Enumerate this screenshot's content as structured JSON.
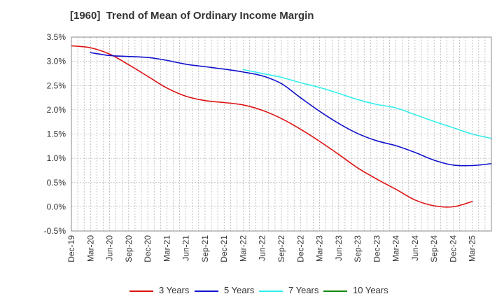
{
  "chart_data": {
    "type": "line",
    "title": "[1960]  Trend of Mean of Ordinary Income Margin",
    "xlabel": "",
    "ylabel": "",
    "x_tick_labels": [
      "Dec-19",
      "Mar-20",
      "Jun-20",
      "Sep-20",
      "Dec-20",
      "Mar-21",
      "Jun-21",
      "Sep-21",
      "Dec-21",
      "Mar-22",
      "Jun-22",
      "Sep-22",
      "Dec-22",
      "Mar-23",
      "Jun-23",
      "Sep-23",
      "Dec-23",
      "Mar-24",
      "Jun-24",
      "Sep-24",
      "Dec-24",
      "Mar-25"
    ],
    "y_tick_labels": [
      "3.5%",
      "3.0%",
      "2.5%",
      "2.0%",
      "1.5%",
      "1.0%",
      "0.5%",
      "0.0%",
      "-0.5%"
    ],
    "y_tick_values": [
      3.5,
      3.0,
      2.5,
      2.0,
      1.5,
      1.0,
      0.5,
      0.0,
      -0.5
    ],
    "ylim": [
      -0.5,
      3.5
    ],
    "x_range_months": [
      0,
      63
    ],
    "grid": true,
    "legend_position": "bottom",
    "series": [
      {
        "name": "3 Years",
        "color": "#dd1111",
        "points": [
          {
            "m": 0,
            "v": 3.32
          },
          {
            "m": 3,
            "v": 3.28
          },
          {
            "m": 6,
            "v": 3.15
          },
          {
            "m": 9,
            "v": 2.93
          },
          {
            "m": 12,
            "v": 2.69
          },
          {
            "m": 15,
            "v": 2.45
          },
          {
            "m": 18,
            "v": 2.28
          },
          {
            "m": 21,
            "v": 2.19
          },
          {
            "m": 24,
            "v": 2.15
          },
          {
            "m": 27,
            "v": 2.1
          },
          {
            "m": 30,
            "v": 1.99
          },
          {
            "m": 33,
            "v": 1.82
          },
          {
            "m": 36,
            "v": 1.6
          },
          {
            "m": 39,
            "v": 1.35
          },
          {
            "m": 42,
            "v": 1.08
          },
          {
            "m": 45,
            "v": 0.8
          },
          {
            "m": 48,
            "v": 0.57
          },
          {
            "m": 51,
            "v": 0.36
          },
          {
            "m": 54,
            "v": 0.14
          },
          {
            "m": 57,
            "v": 0.02
          },
          {
            "m": 60,
            "v": 0.0
          },
          {
            "m": 63,
            "v": 0.11
          }
        ]
      },
      {
        "name": "5 Years",
        "color": "#1111cc",
        "points": [
          {
            "m": 3,
            "v": 3.18
          },
          {
            "m": 6,
            "v": 3.12
          },
          {
            "m": 9,
            "v": 3.1
          },
          {
            "m": 12,
            "v": 3.08
          },
          {
            "m": 15,
            "v": 3.02
          },
          {
            "m": 18,
            "v": 2.94
          },
          {
            "m": 21,
            "v": 2.89
          },
          {
            "m": 24,
            "v": 2.84
          },
          {
            "m": 27,
            "v": 2.78
          },
          {
            "m": 30,
            "v": 2.7
          },
          {
            "m": 33,
            "v": 2.54
          },
          {
            "m": 36,
            "v": 2.25
          },
          {
            "m": 39,
            "v": 1.97
          },
          {
            "m": 42,
            "v": 1.72
          },
          {
            "m": 45,
            "v": 1.51
          },
          {
            "m": 48,
            "v": 1.36
          },
          {
            "m": 51,
            "v": 1.26
          },
          {
            "m": 54,
            "v": 1.12
          },
          {
            "m": 57,
            "v": 0.96
          },
          {
            "m": 60,
            "v": 0.86
          },
          {
            "m": 63,
            "v": 0.85
          },
          {
            "m": 66,
            "v": 0.89
          }
        ]
      },
      {
        "name": "7 Years",
        "color": "#33eeee",
        "points": [
          {
            "m": 27,
            "v": 2.83
          },
          {
            "m": 30,
            "v": 2.75
          },
          {
            "m": 33,
            "v": 2.67
          },
          {
            "m": 36,
            "v": 2.56
          },
          {
            "m": 39,
            "v": 2.46
          },
          {
            "m": 42,
            "v": 2.34
          },
          {
            "m": 45,
            "v": 2.21
          },
          {
            "m": 48,
            "v": 2.11
          },
          {
            "m": 51,
            "v": 2.04
          },
          {
            "m": 54,
            "v": 1.9
          },
          {
            "m": 57,
            "v": 1.76
          },
          {
            "m": 60,
            "v": 1.63
          },
          {
            "m": 63,
            "v": 1.5
          },
          {
            "m": 66,
            "v": 1.41
          }
        ]
      },
      {
        "name": "10 Years",
        "color": "#118811",
        "points": []
      }
    ]
  }
}
